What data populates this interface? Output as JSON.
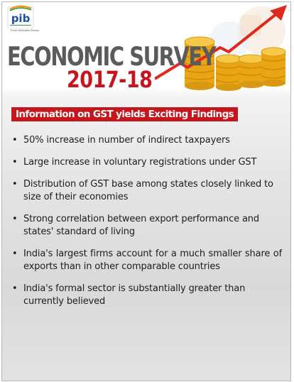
{
  "logo": {
    "name": "pib-logo",
    "text": "pib",
    "subtext": "Press Information Bureau"
  },
  "header": {
    "title": "ECONOMIC SURVEY",
    "year": "2017-18"
  },
  "banner": {
    "text": "Information on GST yields Exciting Findings"
  },
  "points": [
    "50% increase in number of indirect taxpayers",
    "Large increase in voluntary registrations under GST",
    "Distribution of GST base among states closely linked to size of their economies",
    "Strong correlation between export performance and states' standard of living",
    "India's largest firms account for a much smaller share of exports than in other comparable countries",
    "India's formal sector is substantially greater than currently believed"
  ],
  "colors": {
    "accent": "#c4161c",
    "title": "#5b5b5b",
    "coin": "#f2b01e"
  }
}
